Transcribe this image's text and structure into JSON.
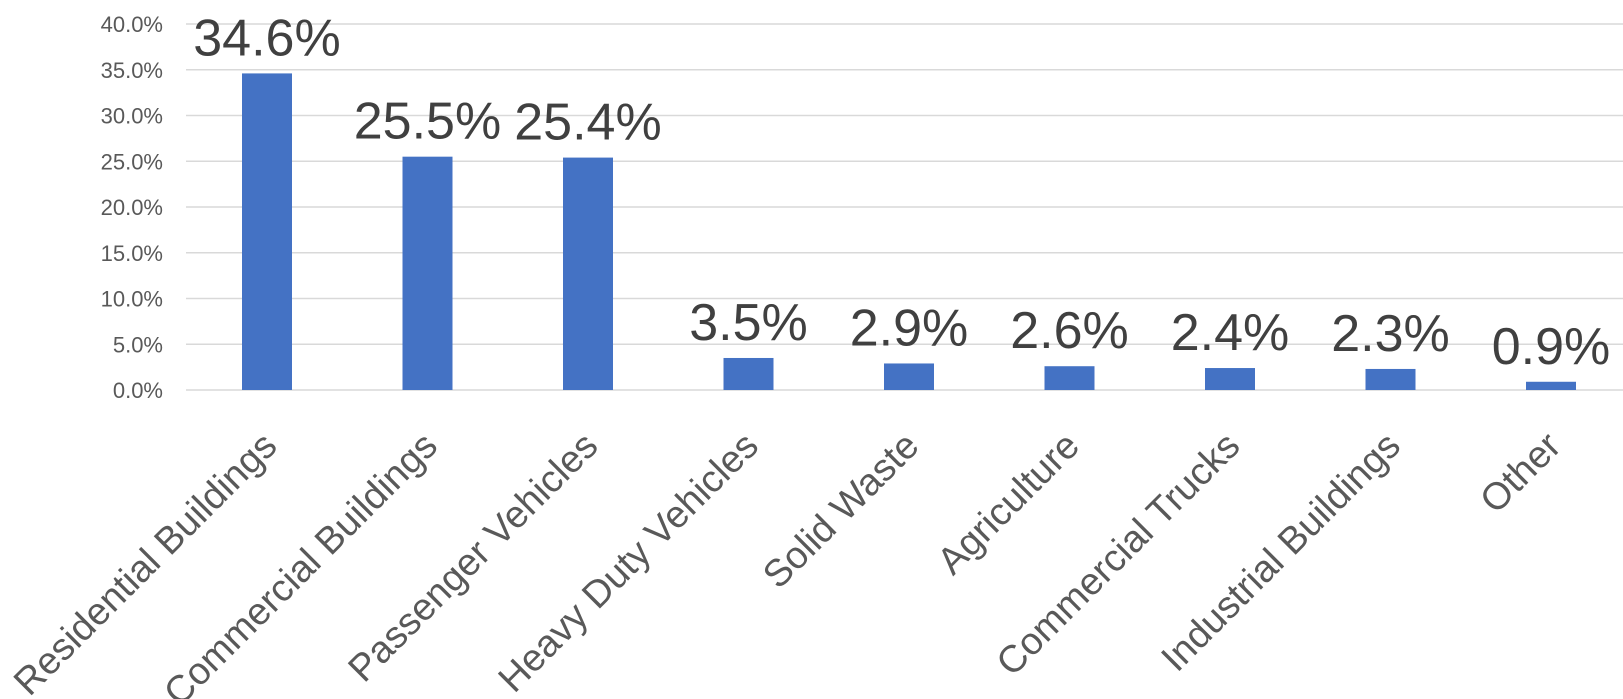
{
  "chart_data": {
    "type": "bar",
    "categories": [
      "Residential Buildings",
      "Commercial Buildings",
      "Passenger Vehicles",
      "Heavy Duty Vehicles",
      "Solid Waste",
      "Agriculture",
      "Commercial Trucks",
      "Industrial Buildings",
      "Other"
    ],
    "values": [
      34.6,
      25.5,
      25.4,
      3.5,
      2.9,
      2.6,
      2.4,
      2.3,
      0.9
    ],
    "data_labels": [
      "34.6%",
      "25.5%",
      "25.4%",
      "3.5%",
      "2.9%",
      "2.6%",
      "2.4%",
      "2.3%",
      "0.9%"
    ],
    "yticks": [
      "0.0%",
      "5.0%",
      "10.0%",
      "15.0%",
      "20.0%",
      "25.0%",
      "30.0%",
      "35.0%",
      "40.0%"
    ],
    "ylim": [
      0,
      40
    ],
    "grid": true,
    "legend": "none",
    "colors": {
      "bar": "#4472c4"
    }
  }
}
